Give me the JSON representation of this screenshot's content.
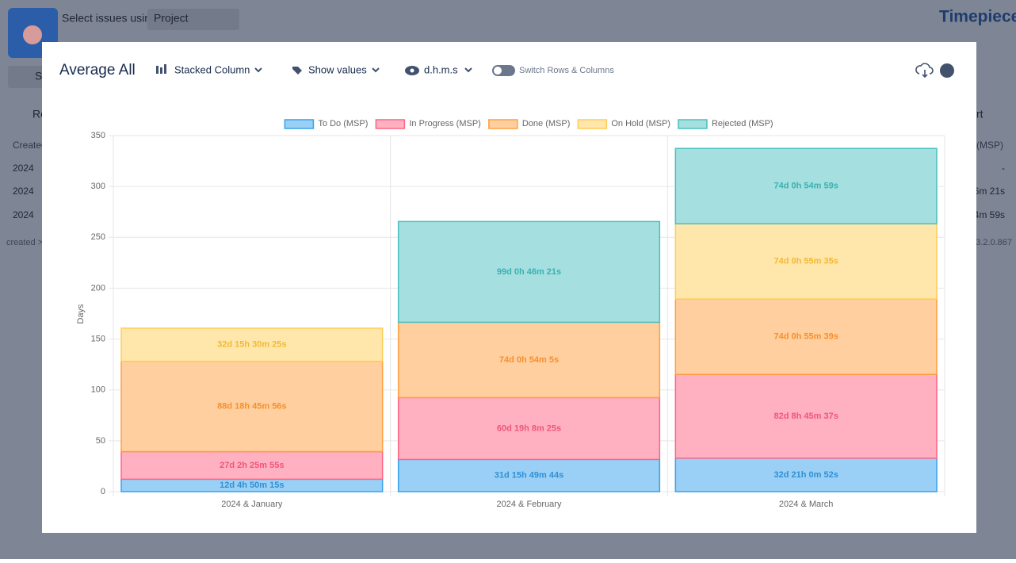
{
  "background": {
    "button": "St",
    "select_label": "Select issues using",
    "select_value": "Project",
    "brand": "Timepiece",
    "refresh": "Ro",
    "export": "rt",
    "table_header": "Created",
    "rows": [
      "2024",
      "2024",
      "2024"
    ],
    "right_header": "(MSP)",
    "right_values": [
      "-",
      "6m 21s",
      "4m 59s"
    ],
    "footer_left": "created >",
    "version": "3.2.0.867"
  },
  "toolbar": {
    "title": "Average All",
    "chart_type": "Stacked Column",
    "values_toggle": "Show values",
    "format": "d.h.m.s",
    "switch": "Switch Rows & Columns"
  },
  "chart_data": {
    "type": "stacked_bar",
    "y_label": "Days",
    "categories": [
      "2024 & January",
      "2024 & February",
      "2024 & March"
    ],
    "series": [
      {
        "name": "To Do (MSP)",
        "color": "#36a2eb",
        "values": [
          12.2015625,
          31.659537,
          32.875602
        ],
        "value_labels": [
          "12d 4h 50m 15s",
          "31d 15h 49m 44s",
          "32d 21h 0m 52s"
        ]
      },
      {
        "name": "In Progress (MSP)",
        "color": "#ff6384",
        "values": [
          27.101331,
          60.797512,
          82.365012
        ],
        "value_labels": [
          "27d 2h 25m 55s",
          "60d 19h 8m 25s",
          "82d 8h 45m 37s"
        ]
      },
      {
        "name": "Done (MSP)",
        "color": "#ff9f40",
        "values": [
          88.781898,
          74.037558,
          74.038646
        ],
        "value_labels": [
          "88d 18h 45m 56s",
          "74d 0h 54m 5s",
          "74d 0h 55m 39s"
        ]
      },
      {
        "name": "On Hold (MSP)",
        "color": "#ffcd56",
        "values": [
          32.646123,
          null,
          74.0386
        ],
        "value_labels": [
          "32d 15h 30m 25s",
          null,
          "74d 0h 55m 35s"
        ]
      },
      {
        "name": "Rejected (MSP)",
        "color": "#4bc0c0",
        "values": [
          null,
          99.032188,
          74.038183
        ],
        "value_labels": [
          null,
          "99d 0h 46m 21s",
          "74d 0h 54m 59s"
        ]
      }
    ],
    "ylim": [
      0,
      350
    ],
    "yticks": [
      0,
      50,
      100,
      150,
      200,
      250,
      300,
      350
    ],
    "grid": true
  }
}
